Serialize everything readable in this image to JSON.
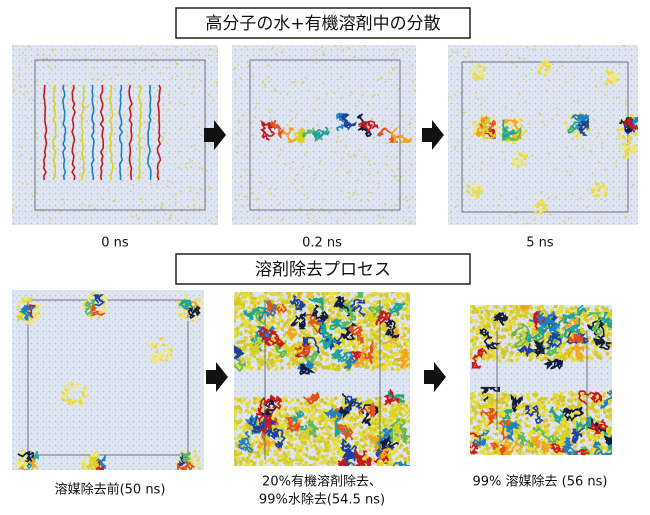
{
  "sections": [
    {
      "title": "高分子の水+有機溶剤中の分散",
      "panels": [
        {
          "caption": [
            "0 ns"
          ]
        },
        {
          "caption": [
            "0.2 ns"
          ]
        },
        {
          "caption": [
            "5 ns"
          ]
        }
      ]
    },
    {
      "title": "溶剤除去プロセス",
      "panels": [
        {
          "caption": [
            "溶媒除去前(50 ns)"
          ]
        },
        {
          "caption": [
            "20%有機溶剤除去、",
            "99%水除去(54.5 ns)"
          ]
        },
        {
          "caption": [
            "99% 溶媒除去 (56 ns)"
          ]
        }
      ]
    }
  ]
}
